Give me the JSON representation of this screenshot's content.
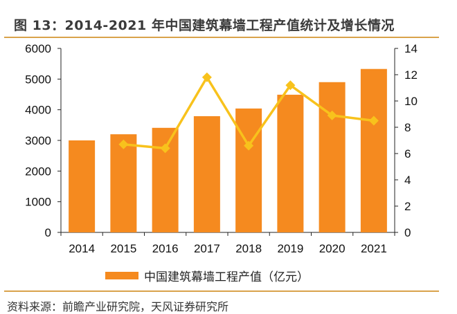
{
  "title": "图 13：2014-2021 年中国建筑幕墙工程产值统计及增长情况",
  "source": "资料来源：前瞻产业研究院，天风证券研究所",
  "chart_data": {
    "type": "bar+line",
    "categories": [
      "2014",
      "2015",
      "2016",
      "2017",
      "2018",
      "2019",
      "2020",
      "2021"
    ],
    "series": [
      {
        "name": "中国建筑幕墙工程产值（亿元）",
        "type": "bar",
        "axis": "left",
        "color": "#f58a1f",
        "values": [
          3000,
          3200,
          3410,
          3790,
          4040,
          4490,
          4900,
          5330
        ]
      },
      {
        "type": "line",
        "axis": "right",
        "color": "#f8c21c",
        "values": [
          null,
          6.7,
          6.4,
          11.8,
          6.6,
          11.2,
          8.9,
          8.5
        ]
      }
    ],
    "ylim_left": [
      0,
      6000
    ],
    "yticks_left": [
      0,
      1000,
      2000,
      3000,
      4000,
      5000,
      6000
    ],
    "ylim_right": [
      0,
      14
    ],
    "yticks_right": [
      0,
      2,
      4,
      6,
      8,
      10,
      12,
      14
    ],
    "grid": false,
    "legend": "bottom"
  }
}
